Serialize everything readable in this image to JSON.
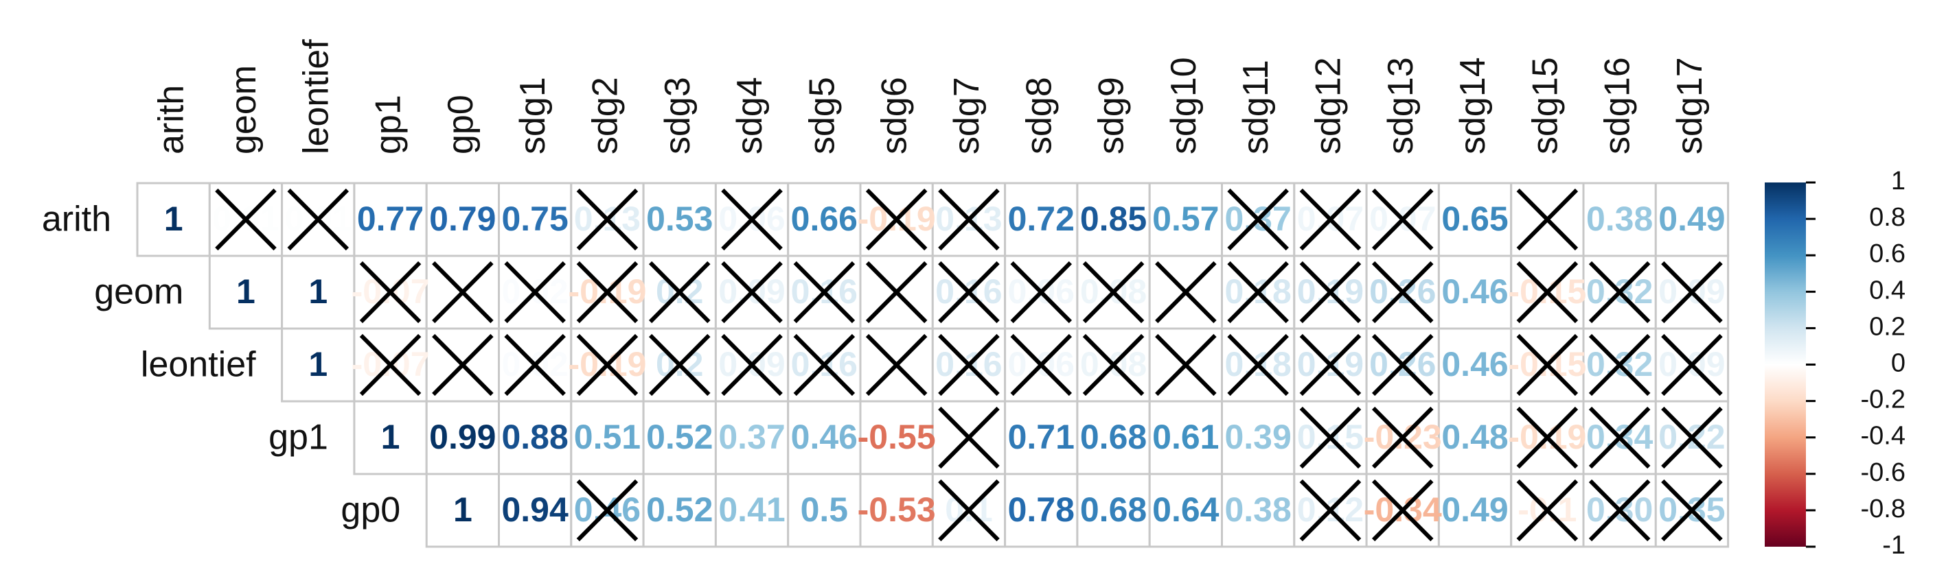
{
  "chart_data": {
    "type": "heatmap",
    "shape": "upper-triangular",
    "rows": [
      "arith",
      "geom",
      "leontief",
      "gp1",
      "gp0"
    ],
    "columns": [
      "arith",
      "geom",
      "leontief",
      "gp1",
      "gp0",
      "sdg1",
      "sdg2",
      "sdg3",
      "sdg4",
      "sdg5",
      "sdg6",
      "sdg7",
      "sdg8",
      "sdg9",
      "sdg10",
      "sdg11",
      "sdg12",
      "sdg13",
      "sdg14",
      "sdg15",
      "sdg16",
      "sdg17"
    ],
    "labels": [
      [
        "1",
        "0.01",
        "0.01",
        "0.77",
        "0.79",
        "0.75",
        "0.13",
        "0.53",
        "0.06",
        "0.66",
        "-0.19",
        "0.13",
        "0.72",
        "0.85",
        "0.57",
        "0.37",
        "0.07",
        "0.07",
        "0.65",
        "",
        "0.38",
        "0.49"
      ],
      [
        "",
        "1",
        "1",
        "-0.07",
        "",
        "0.02",
        "-0.19",
        "0.2",
        "0.09",
        "0.16",
        "",
        "0.16",
        "0.06",
        "0.08",
        "",
        "0.18",
        "0.19",
        "0.26",
        "0.46",
        "-0.15",
        "0.32",
        "0.09"
      ],
      [
        "",
        "",
        "1",
        "-0.07",
        "",
        "0.02",
        "-0.19",
        "0.2",
        "0.09",
        "0.16",
        "",
        "0.16",
        "0.06",
        "0.08",
        "",
        "0.18",
        "0.19",
        "0.26",
        "0.46",
        "-0.15",
        "0.32",
        "0.09"
      ],
      [
        "",
        "",
        "",
        "1",
        "0.99",
        "0.88",
        "0.51",
        "0.52",
        "0.37",
        "0.46",
        "-0.55",
        "",
        "0.71",
        "0.68",
        "0.61",
        "0.39",
        "0.15",
        "-0.23",
        "0.48",
        "-0.19",
        "0.34",
        "0.22"
      ],
      [
        "",
        "",
        "",
        "",
        "1",
        "0.94",
        "0.46",
        "0.52",
        "0.41",
        "0.5",
        "-0.53",
        "0.1",
        "0.78",
        "0.68",
        "0.64",
        "0.38",
        "0.12",
        "-0.34",
        "0.49",
        "-0.1",
        "0.30",
        "0.35"
      ]
    ],
    "insignificant_marked_with_x": [
      [
        false,
        true,
        true,
        false,
        false,
        false,
        true,
        false,
        true,
        false,
        true,
        true,
        false,
        false,
        false,
        true,
        true,
        true,
        false,
        true,
        false,
        false
      ],
      [
        false,
        false,
        false,
        true,
        true,
        true,
        true,
        true,
        true,
        true,
        true,
        true,
        true,
        true,
        true,
        true,
        true,
        true,
        false,
        true,
        true,
        true
      ],
      [
        false,
        false,
        false,
        true,
        true,
        true,
        true,
        true,
        true,
        true,
        true,
        true,
        true,
        true,
        true,
        true,
        true,
        true,
        false,
        true,
        true,
        true
      ],
      [
        false,
        false,
        false,
        false,
        false,
        false,
        false,
        false,
        false,
        false,
        false,
        true,
        false,
        false,
        false,
        false,
        true,
        true,
        false,
        true,
        true,
        true
      ],
      [
        false,
        false,
        false,
        false,
        false,
        false,
        true,
        false,
        false,
        false,
        false,
        true,
        false,
        false,
        false,
        false,
        true,
        true,
        false,
        true,
        true,
        true
      ]
    ],
    "colorbar": {
      "range": [
        -1,
        1
      ],
      "ticks": [
        "1",
        "0.8",
        "0.6",
        "0.4",
        "0.2",
        "0",
        "-0.2",
        "-0.4",
        "-0.6",
        "-0.8",
        "-1"
      ]
    }
  }
}
